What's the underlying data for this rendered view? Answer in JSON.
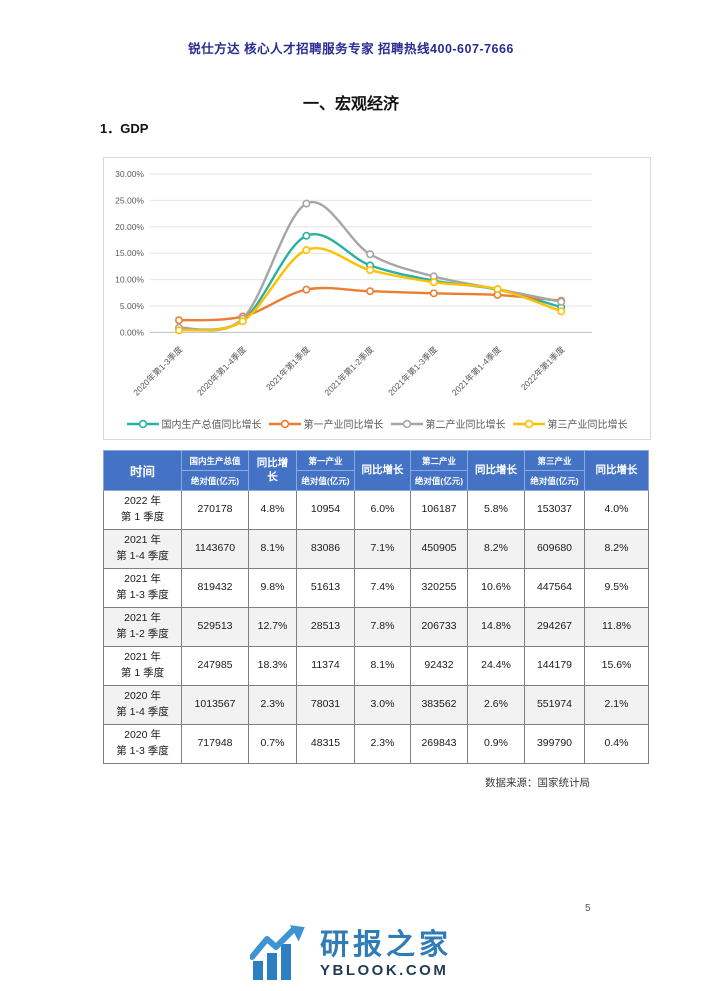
{
  "page": {
    "header": "锐仕方达  核心人才招聘服务专家  招聘热线400-607-7666",
    "section_title": "一、宏观经济",
    "subsection_title": "1．GDP",
    "source_note": "数据来源：国家统计局",
    "page_number": "5"
  },
  "chart_data": {
    "type": "line",
    "title": "",
    "xlabel": "",
    "ylabel": "",
    "categories": [
      "2020年第1-3季度",
      "2020年第1-4季度",
      "2021年第1季度",
      "2021年第1-2季度",
      "2021年第1-3季度",
      "2021年第1-4季度",
      "2022年第1季度"
    ],
    "series": [
      {
        "name": "国内生产总值同比增长",
        "color": "#29b2a2",
        "values": [
          0.7,
          2.3,
          18.3,
          12.7,
          9.8,
          8.1,
          4.8
        ]
      },
      {
        "name": "第一产业同比增长",
        "color": "#ED7D31",
        "values": [
          2.3,
          3.0,
          8.1,
          7.8,
          7.4,
          7.1,
          6.0
        ]
      },
      {
        "name": "第二产业同比增长",
        "color": "#A6A6A6",
        "values": [
          0.9,
          2.6,
          24.4,
          14.8,
          10.6,
          8.2,
          5.8
        ]
      },
      {
        "name": "第三产业同比增长",
        "color": "#FFC000",
        "values": [
          0.4,
          2.1,
          15.6,
          11.8,
          9.5,
          8.2,
          4.0
        ]
      }
    ],
    "ylim": [
      0,
      30
    ],
    "ytick_step": 5,
    "ytick_labels": [
      "0.00%",
      "5.00%",
      "10.00%",
      "15.00%",
      "20.00%",
      "25.00%",
      "30.00%"
    ],
    "grid": true,
    "legend_position": "bottom",
    "marker": "circle"
  },
  "table": {
    "header": {
      "time": "时间",
      "groups": [
        {
          "top": "国内生产总值",
          "bottom": "绝对值(亿元)",
          "growth": "同比增长"
        },
        {
          "top": "第一产业",
          "bottom": "绝对值(亿元)",
          "growth": "同比增长"
        },
        {
          "top": "第二产业",
          "bottom": "绝对值(亿元)",
          "growth": "同比增长"
        },
        {
          "top": "第三产业",
          "bottom": "绝对值(亿元)",
          "growth": "同比增长"
        }
      ]
    },
    "rows": [
      {
        "time_line1": "2022 年",
        "time_line2": "第 1 季度",
        "cells": [
          "270178",
          "4.8%",
          "10954",
          "6.0%",
          "106187",
          "5.8%",
          "153037",
          "4.0%"
        ]
      },
      {
        "time_line1": "2021 年",
        "time_line2": "第 1-4 季度",
        "cells": [
          "1143670",
          "8.1%",
          "83086",
          "7.1%",
          "450905",
          "8.2%",
          "609680",
          "8.2%"
        ]
      },
      {
        "time_line1": "2021 年",
        "time_line2": "第 1-3 季度",
        "cells": [
          "819432",
          "9.8%",
          "51613",
          "7.4%",
          "320255",
          "10.6%",
          "447564",
          "9.5%"
        ]
      },
      {
        "time_line1": "2021 年",
        "time_line2": "第 1-2 季度",
        "cells": [
          "529513",
          "12.7%",
          "28513",
          "7.8%",
          "206733",
          "14.8%",
          "294267",
          "11.8%"
        ]
      },
      {
        "time_line1": "2021 年",
        "time_line2": "第 1 季度",
        "cells": [
          "247985",
          "18.3%",
          "11374",
          "8.1%",
          "92432",
          "24.4%",
          "144179",
          "15.6%"
        ]
      },
      {
        "time_line1": "2020 年",
        "time_line2": "第 1-4 季度",
        "cells": [
          "1013567",
          "2.3%",
          "78031",
          "3.0%",
          "383562",
          "2.6%",
          "551974",
          "2.1%"
        ]
      },
      {
        "time_line1": "2020 年",
        "time_line2": "第 1-3 季度",
        "cells": [
          "717948",
          "0.7%",
          "48315",
          "2.3%",
          "269843",
          "0.9%",
          "399790",
          "0.4%"
        ]
      }
    ]
  },
  "watermark": {
    "title": "研报之家",
    "domain": "YBLOOK.COM",
    "icon_color": "#2e7fc2",
    "arrow_color": "#3d93d4"
  }
}
